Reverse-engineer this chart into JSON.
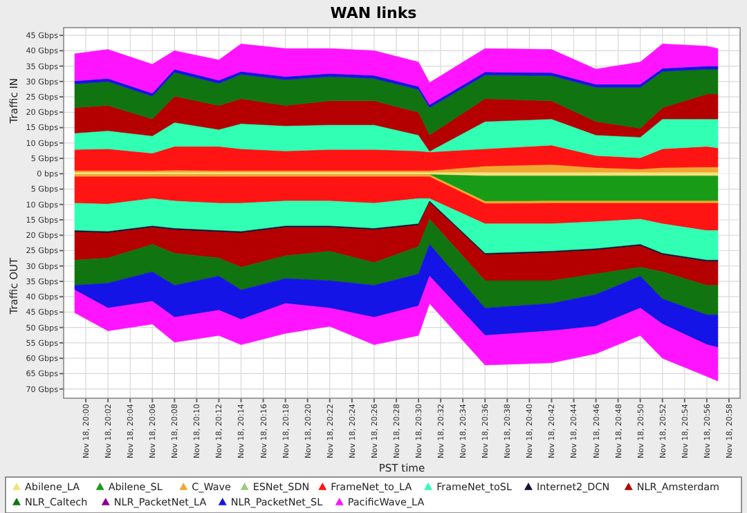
{
  "chart_data": [
    {
      "type": "area",
      "stacked": true,
      "title": "WAN links",
      "ylabel": "Traffic IN",
      "tick_labels": "y",
      "xlim": [
        "--11-18T19:58",
        "--11-18T20:59"
      ],
      "ylim": [
        0,
        47.5
      ],
      "xticks": [
        {
          "value": "--11-18T20:00",
          "label": null
        },
        {
          "value": "--11-18T20:02",
          "label": null
        },
        {
          "value": "--11-18T20:04",
          "label": null
        },
        {
          "value": "--11-18T20:06",
          "label": null
        },
        {
          "value": "--11-18T20:08",
          "label": null
        },
        {
          "value": "--11-18T20:10",
          "label": null
        },
        {
          "value": "--11-18T20:12",
          "label": null
        },
        {
          "value": "--11-18T20:14",
          "label": null
        },
        {
          "value": "--11-18T20:16",
          "label": null
        },
        {
          "value": "--11-18T20:18",
          "label": null
        },
        {
          "value": "--11-18T20:20",
          "label": null
        },
        {
          "value": "--11-18T20:22",
          "label": null
        },
        {
          "value": "--11-18T20:24",
          "label": null
        },
        {
          "value": "--11-18T20:26",
          "label": null
        },
        {
          "value": "--11-18T20:28",
          "label": null
        },
        {
          "value": "--11-18T20:30",
          "label": null
        },
        {
          "value": "--11-18T20:32",
          "label": null
        },
        {
          "value": "--11-18T20:34",
          "label": null
        },
        {
          "value": "--11-18T20:36",
          "label": null
        },
        {
          "value": "--11-18T20:38",
          "label": null
        },
        {
          "value": "--11-18T20:40",
          "label": null
        },
        {
          "value": "--11-18T20:42",
          "label": null
        },
        {
          "value": "--11-18T20:44",
          "label": null
        },
        {
          "value": "--11-18T20:46",
          "label": null
        },
        {
          "value": "--11-18T20:48",
          "label": null
        },
        {
          "value": "--11-18T20:50",
          "label": null
        },
        {
          "value": "--11-18T20:52",
          "label": null
        },
        {
          "value": "--11-18T20:54",
          "label": null
        },
        {
          "value": "--11-18T20:56",
          "label": null
        },
        {
          "value": "--11-18T20:58",
          "label": null
        }
      ],
      "yticks": [
        {
          "value": 0,
          "label": "0 bps"
        },
        {
          "value": 5,
          "label": "5 Gbps"
        },
        {
          "value": 10,
          "label": "10 Gbps"
        },
        {
          "value": 15,
          "label": "15 Gbps"
        },
        {
          "value": 20,
          "label": "20 Gbps"
        },
        {
          "value": 25,
          "label": "25 Gbps"
        },
        {
          "value": 30,
          "label": "30 Gbps"
        },
        {
          "value": 35,
          "label": "35 Gbps"
        },
        {
          "value": 40,
          "label": "40 Gbps"
        },
        {
          "value": 45,
          "label": "45 Gbps"
        }
      ],
      "grid": true,
      "legend": "bottom",
      "x": [
        "--11-18T19:59",
        "--11-18T20:02",
        "--11-18T20:06",
        "--11-18T20:08",
        "--11-18T20:12",
        "--11-18T20:14",
        "--11-18T20:18",
        "--11-18T20:22",
        "--11-18T20:26",
        "--11-18T20:30",
        "--11-18T20:31",
        "--11-18T20:36",
        "--11-18T20:42",
        "--11-18T20:46",
        "--11-18T20:50",
        "--11-18T20:52",
        "--11-18T20:56",
        "--11-18T20:57"
      ],
      "series": [
        {
          "name": "Abilene_LA",
          "color": "#f2e27a",
          "values": [
            0.5,
            0.5,
            0.5,
            0.5,
            0.5,
            0.5,
            0.5,
            0.5,
            0.5,
            0.5,
            0.5,
            0.5,
            0.5,
            0.5,
            0.5,
            0.5,
            0.5,
            0.5
          ]
        },
        {
          "name": "Abilene_SL",
          "color": "#189c18",
          "values": [
            null,
            null,
            null,
            null,
            null,
            null,
            null,
            null,
            null,
            null,
            null,
            null,
            null,
            null,
            null,
            null,
            null,
            null
          ]
        },
        {
          "name": "C_Wave",
          "color": "#f0a830",
          "values": [
            0.5,
            0.5,
            0.5,
            0.7,
            0.5,
            0.5,
            0.5,
            0.5,
            0.5,
            0.5,
            0.5,
            2,
            2.5,
            1.5,
            1,
            1.5,
            1.7,
            1.7
          ]
        },
        {
          "name": "ESNet_SDN",
          "color": "#9ccc7c",
          "values": [
            null,
            null,
            null,
            null,
            null,
            null,
            null,
            null,
            null,
            null,
            null,
            null,
            null,
            null,
            null,
            null,
            null,
            null
          ]
        },
        {
          "name": "FrameNet_to_LA",
          "color": "#ff1414",
          "values": [
            6.9,
            7.1,
            5.7,
            7.7,
            7.9,
            7.1,
            6.4,
            6.9,
            6.9,
            6.4,
            6.1,
            5.6,
            6.3,
            3.9,
            3.7,
            6.1,
            6.7,
            6.2
          ]
        },
        {
          "name": "FrameNet_toSL",
          "color": "#30ffb4",
          "values": [
            5.3,
            5.9,
            5.6,
            7.8,
            5.5,
            8.2,
            8.2,
            8,
            8,
            5.2,
            0.2,
            8.9,
            8.5,
            6.7,
            6.7,
            9.7,
            8.9,
            9.4
          ]
        },
        {
          "name": "Internet2_DCN",
          "color": "#1c1030",
          "values": [
            null,
            null,
            null,
            null,
            null,
            null,
            null,
            null,
            null,
            null,
            null,
            null,
            null,
            null,
            null,
            null,
            null,
            null
          ]
        },
        {
          "name": "NLR_Amsterdam",
          "color": "#b40000",
          "values": [
            8.3,
            8.2,
            5.5,
            8.5,
            7.8,
            8.1,
            6.6,
            7.8,
            7.8,
            7.4,
            5.3,
            7.4,
            5.9,
            4.4,
            2.9,
            3.7,
            8.1,
            8.1
          ]
        },
        {
          "name": "NLR_Caltech",
          "color": "#107410",
          "values": [
            7.7,
            7.8,
            7.4,
            7.8,
            7.2,
            7.9,
            8.4,
            7.9,
            7.3,
            7.4,
            8.9,
            7.7,
            8.2,
            11.1,
            13.3,
            11.8,
            8.1,
            8.1
          ]
        },
        {
          "name": "NLR_PacketNet_LA",
          "color": "#8c008c",
          "values": [
            null,
            null,
            null,
            null,
            null,
            null,
            null,
            null,
            null,
            null,
            null,
            null,
            null,
            null,
            null,
            null,
            null,
            null
          ]
        },
        {
          "name": "NLR_PacketNet_SL",
          "color": "#1414e6",
          "values": [
            1,
            1,
            1,
            1,
            1,
            1,
            1,
            1,
            1,
            1,
            1,
            1,
            1,
            1,
            1,
            1,
            1,
            1
          ]
        },
        {
          "name": "PacificWave_LA",
          "color": "#ff14ff",
          "values": [
            8.8,
            9.4,
            9.4,
            6,
            6.6,
            8.9,
            9.1,
            8.1,
            8,
            7.9,
            7.1,
            7.6,
            7.5,
            4.9,
            7.2,
            7.9,
            6.5,
            5.7
          ]
        }
      ]
    },
    {
      "type": "area",
      "stacked": true,
      "xlabel": "PST time",
      "ylabel": "Traffic OUT",
      "xlim": [
        "--11-18T19:58",
        "--11-18T20:59"
      ],
      "ylim": [
        73,
        0
      ],
      "xticks": [
        {
          "value": "--11-18T20:00",
          "label": "Nov 18, 20:00"
        },
        {
          "value": "--11-18T20:02",
          "label": "Nov 18, 20:02"
        },
        {
          "value": "--11-18T20:04",
          "label": "Nov 18, 20:04"
        },
        {
          "value": "--11-18T20:06",
          "label": "Nov 18, 20:06"
        },
        {
          "value": "--11-18T20:08",
          "label": "Nov 18, 20:08"
        },
        {
          "value": "--11-18T20:10",
          "label": "Nov 18, 20:10"
        },
        {
          "value": "--11-18T20:12",
          "label": "Nov 18, 20:12"
        },
        {
          "value": "--11-18T20:14",
          "label": "Nov 18, 20:14"
        },
        {
          "value": "--11-18T20:16",
          "label": "Nov 18, 20:16"
        },
        {
          "value": "--11-18T20:18",
          "label": "Nov 18, 20:18"
        },
        {
          "value": "--11-18T20:20",
          "label": "Nov 18, 20:20"
        },
        {
          "value": "--11-18T20:22",
          "label": "Nov 18, 20:22"
        },
        {
          "value": "--11-18T20:24",
          "label": "Nov 18, 20:24"
        },
        {
          "value": "--11-18T20:26",
          "label": "Nov 18, 20:26"
        },
        {
          "value": "--11-18T20:28",
          "label": "Nov 18, 20:28"
        },
        {
          "value": "--11-18T20:30",
          "label": "Nov 18, 20:30"
        },
        {
          "value": "--11-18T20:32",
          "label": "Nov 18, 20:32"
        },
        {
          "value": "--11-18T20:34",
          "label": "Nov 18, 20:34"
        },
        {
          "value": "--11-18T20:36",
          "label": "Nov 18, 20:36"
        },
        {
          "value": "--11-18T20:38",
          "label": "Nov 18, 20:38"
        },
        {
          "value": "--11-18T20:40",
          "label": "Nov 18, 20:40"
        },
        {
          "value": "--11-18T20:42",
          "label": "Nov 18, 20:42"
        },
        {
          "value": "--11-18T20:44",
          "label": "Nov 18, 20:44"
        },
        {
          "value": "--11-18T20:46",
          "label": "Nov 18, 20:46"
        },
        {
          "value": "--11-18T20:48",
          "label": "Nov 18, 20:48"
        },
        {
          "value": "--11-18T20:50",
          "label": "Nov 18, 20:50"
        },
        {
          "value": "--11-18T20:52",
          "label": "Nov 18, 20:52"
        },
        {
          "value": "--11-18T20:54",
          "label": "Nov 18, 20:54"
        },
        {
          "value": "--11-18T20:56",
          "label": "Nov 18, 20:56"
        },
        {
          "value": "--11-18T20:58",
          "label": "Nov 18, 20:58"
        }
      ],
      "yticks": [
        {
          "value": 5,
          "label": "5 Gbps"
        },
        {
          "value": 10,
          "label": "10 Gbps"
        },
        {
          "value": 15,
          "label": "15 Gbps"
        },
        {
          "value": 20,
          "label": "20 Gbps"
        },
        {
          "value": 25,
          "label": "25 Gbps"
        },
        {
          "value": 30,
          "label": "30 Gbps"
        },
        {
          "value": 35,
          "label": "35 Gbps"
        },
        {
          "value": 40,
          "label": "40 Gbps"
        },
        {
          "value": 45,
          "label": "45 Gbps"
        },
        {
          "value": 50,
          "label": "50 Gbps"
        },
        {
          "value": 55,
          "label": "55 Gbps"
        },
        {
          "value": 60,
          "label": "60 Gbps"
        },
        {
          "value": 65,
          "label": "65 Gbps"
        },
        {
          "value": 70,
          "label": "70 Gbps"
        }
      ],
      "grid": true,
      "x": [
        "--11-18T19:59",
        "--11-18T20:02",
        "--11-18T20:06",
        "--11-18T20:08",
        "--11-18T20:12",
        "--11-18T20:14",
        "--11-18T20:18",
        "--11-18T20:22",
        "--11-18T20:26",
        "--11-18T20:30",
        "--11-18T20:31",
        "--11-18T20:36",
        "--11-18T20:42",
        "--11-18T20:46",
        "--11-18T20:50",
        "--11-18T20:52",
        "--11-18T20:56",
        "--11-18T20:57"
      ],
      "series": [
        {
          "color": "#f2e27a",
          "values": [
            0.3,
            0.3,
            0.3,
            0.3,
            0.3,
            0.3,
            0.3,
            0.3,
            0.3,
            0.3,
            0.3,
            0.7,
            0.7,
            0.7,
            0.7,
            0.7,
            0.7,
            0.7
          ]
        },
        {
          "color": "#189c18",
          "values": [
            0,
            0,
            0,
            0,
            0,
            0,
            0,
            0,
            0,
            0,
            0,
            8.3,
            8.2,
            8.2,
            8.2,
            8.2,
            8.2,
            8.2
          ]
        },
        {
          "color": "#f0a830",
          "values": [
            0.7,
            0.7,
            0.7,
            0.7,
            0.7,
            0.7,
            0.7,
            0.7,
            0.7,
            0.7,
            0.7,
            0.7,
            0.7,
            0.7,
            0.7,
            0.7,
            0.7,
            0.7
          ]
        },
        {
          "color": "#ff1414",
          "values": [
            8.6,
            8.9,
            7.1,
            7.9,
            8.6,
            8.6,
            7.9,
            7.9,
            8.6,
            7.1,
            7.1,
            6.6,
            6.7,
            6,
            5.2,
            6.7,
            8.9,
            8.9
          ]
        },
        {
          "color": "#30ffb4",
          "values": [
            8.9,
            8.9,
            8.9,
            8.9,
            8.9,
            9.2,
            8.1,
            8.1,
            8.2,
            8.2,
            0.8,
            9.6,
            8.9,
            8.8,
            8.2,
            9.6,
            9.6,
            9.6
          ]
        },
        {
          "color": "#1c1030",
          "values": [
            0.5,
            0.5,
            0.5,
            0.5,
            0.5,
            0.5,
            0.5,
            0.5,
            0.5,
            0.5,
            0.5,
            0.5,
            0.5,
            0.5,
            0.5,
            0.5,
            0.5,
            0.5
          ]
        },
        {
          "color": "#b40000",
          "values": [
            9.1,
            8.1,
            5.5,
            7.6,
            8.4,
            11.1,
            9.2,
            7.7,
            10.6,
            6.9,
            5.4,
            8.4,
            9.1,
            7.7,
            6.9,
            5.5,
            7.7,
            7.7
          ]
        },
        {
          "color": "#107410",
          "values": [
            8.2,
            8.2,
            8.9,
            10.4,
            5.9,
            7.4,
            7.4,
            9.6,
            7.4,
            8.9,
            8.2,
            8.9,
            7.4,
            6.7,
            2.9,
            8.8,
            9.6,
            9.6
          ]
        },
        {
          "color": "#1414e6",
          "values": [
            1.5,
            8.1,
            9.6,
            10.4,
            11.1,
            9.6,
            8.1,
            8.9,
            10.4,
            10.4,
            10.3,
            8.9,
            8.9,
            10.3,
            10.4,
            8.2,
            9.7,
            10.6
          ]
        },
        {
          "color": "#ff14ff",
          "values": [
            7.4,
            7.4,
            7.4,
            8.1,
            8.2,
            8.2,
            9.7,
            5.9,
            8.9,
            9.6,
            8.9,
            9.6,
            10.4,
            8.9,
            8.9,
            11.1,
            10.3,
            10.9
          ]
        }
      ]
    }
  ]
}
